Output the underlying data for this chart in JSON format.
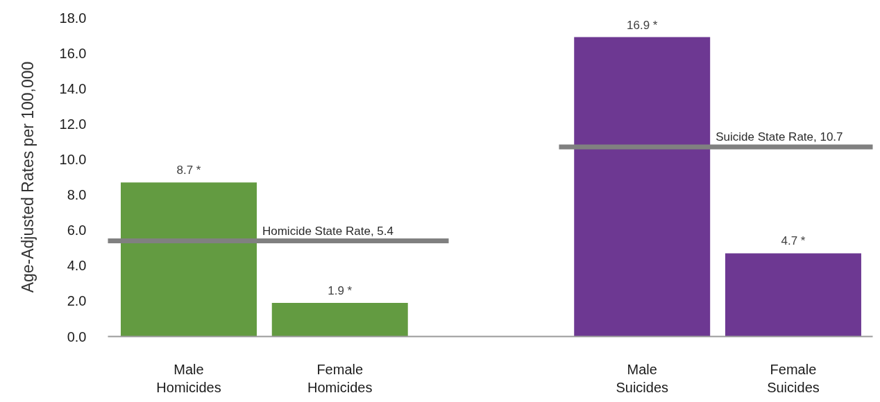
{
  "chart_data": {
    "type": "bar",
    "ylabel": "Age-Adjusted Rates per 100,000",
    "categories": [
      "Male Homicides",
      "Female Homicides",
      null,
      "Male Suicides",
      "Female Suicides"
    ],
    "values": [
      8.7,
      1.9,
      null,
      16.9,
      4.7
    ],
    "colors": [
      "#639b41",
      "#639b41",
      null,
      "#6d3892",
      "#6d3892"
    ],
    "value_labels": [
      "8.7 *",
      "1.9 *",
      null,
      "16.9 *",
      "4.7 *"
    ],
    "ylim": [
      0,
      18
    ],
    "yticks": [
      {
        "value": 0,
        "label": "0.0"
      },
      {
        "value": 2,
        "label": "2.0"
      },
      {
        "value": 4,
        "label": "4.0"
      },
      {
        "value": 6,
        "label": "6.0"
      },
      {
        "value": 8,
        "label": "8.0"
      },
      {
        "value": 10,
        "label": "10.0"
      },
      {
        "value": 12,
        "label": "12.0"
      },
      {
        "value": 14,
        "label": "14.0"
      },
      {
        "value": 16,
        "label": "16.0"
      },
      {
        "value": 18,
        "label": "18.0"
      }
    ],
    "ref_lines": [
      {
        "axis": "y",
        "value": 5.4,
        "label": "Homicide State Rate, 5.4",
        "color": "#808080"
      },
      {
        "axis": "y",
        "value": 10.7,
        "label": "Suicide State Rate, 10.7",
        "color": "#808080"
      }
    ]
  }
}
